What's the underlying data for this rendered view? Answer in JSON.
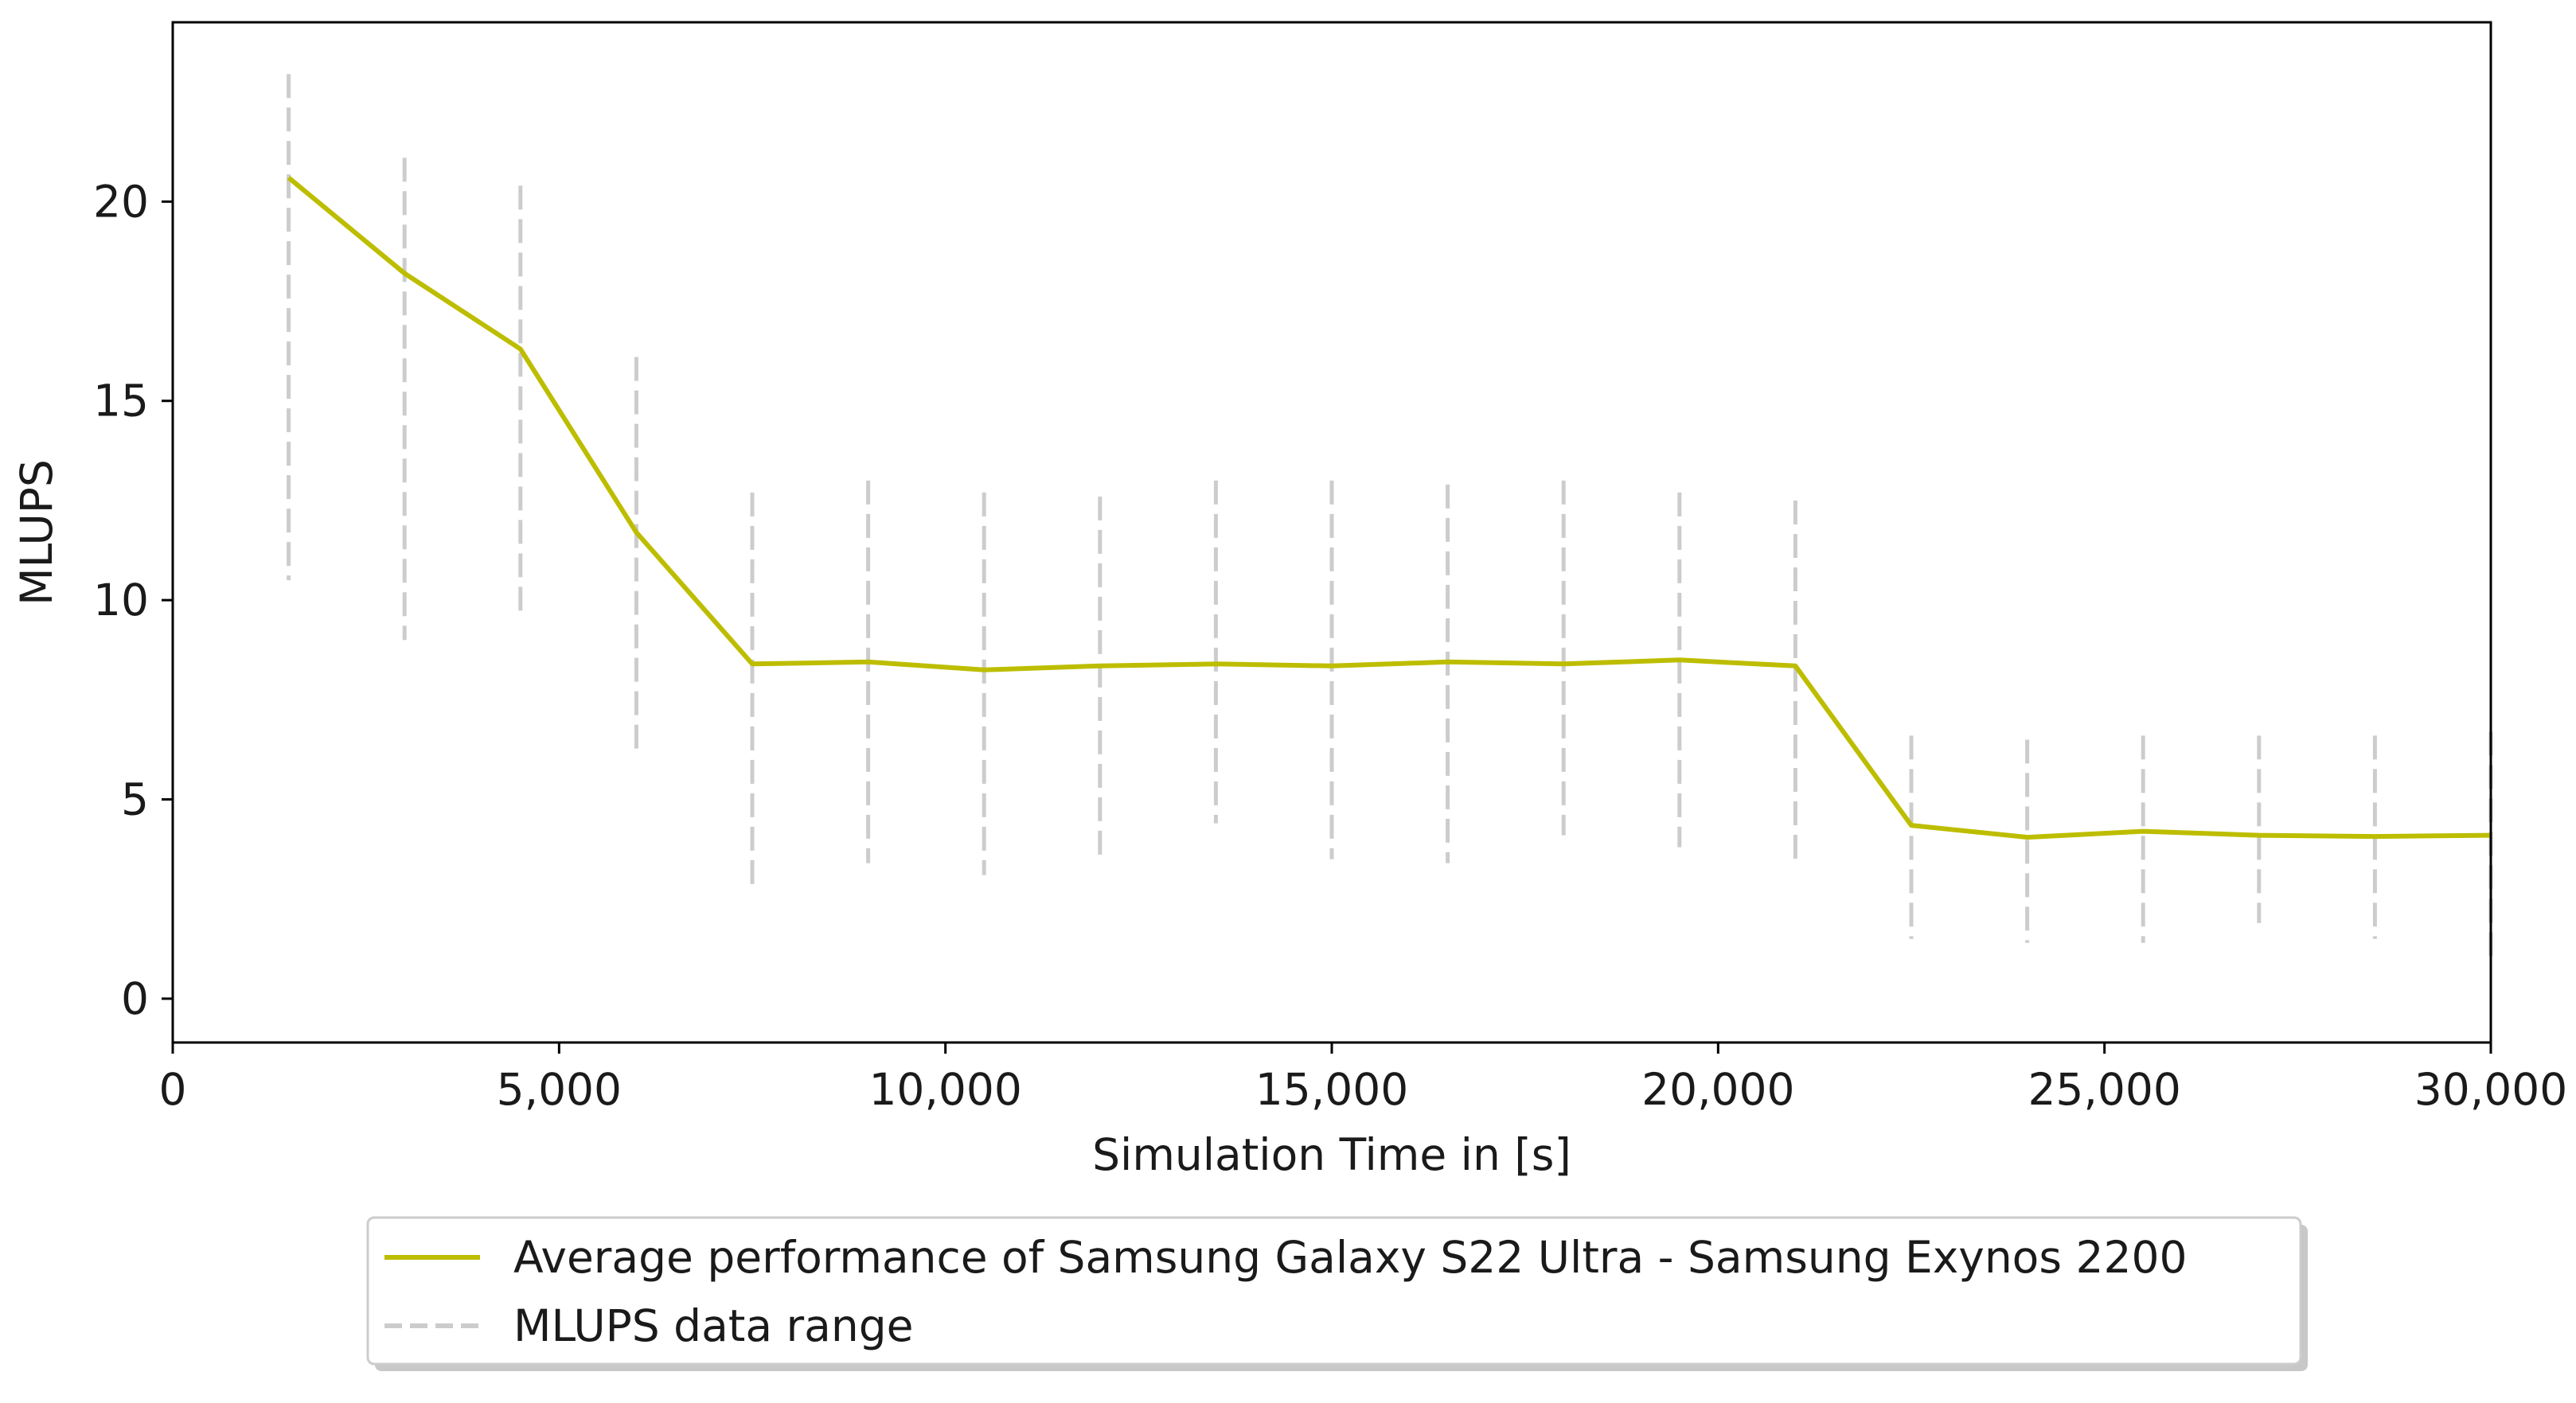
{
  "chart_data": {
    "type": "line",
    "title": "",
    "xlabel": "Simulation Time in [s]",
    "ylabel": "MLUPS",
    "xlim": [
      0,
      30000
    ],
    "ylim": [
      -1.1,
      24.5
    ],
    "grid": false,
    "x_ticks": [
      0,
      5000,
      10000,
      15000,
      20000,
      25000,
      30000
    ],
    "x_tick_labels": [
      "0",
      "5,000",
      "10,000",
      "15,000",
      "20,000",
      "25,000",
      "30,000"
    ],
    "y_ticks": [
      0,
      5,
      10,
      15,
      20
    ],
    "y_tick_labels": [
      "0",
      "5",
      "10",
      "15",
      "20"
    ],
    "legend_position": "bottom-center",
    "series": [
      {
        "name": "Average performance of Samsung Galaxy S22 Ultra - Samsung Exynos 2200",
        "style": "solid",
        "color": "#bdbd00",
        "x": [
          1500,
          3000,
          4500,
          6000,
          7500,
          9000,
          10500,
          12000,
          13500,
          15000,
          16500,
          18000,
          19500,
          21000,
          22500,
          24000,
          25500,
          27000,
          28500,
          30000
        ],
        "values": [
          20.6,
          18.2,
          16.3,
          11.7,
          8.4,
          8.45,
          8.25,
          8.35,
          8.4,
          8.35,
          8.45,
          8.4,
          8.5,
          8.35,
          4.35,
          4.05,
          4.2,
          4.1,
          4.07,
          4.1
        ]
      }
    ],
    "ranges": {
      "name": "MLUPS data range",
      "style": "dashed",
      "color": "#cccccc",
      "x": [
        1500,
        3000,
        4500,
        6000,
        7500,
        9000,
        10500,
        12000,
        13500,
        15000,
        16500,
        18000,
        19500,
        21000,
        22500,
        24000,
        25500,
        27000,
        28500,
        30000
      ],
      "low": [
        10.5,
        9.0,
        9.6,
        6.1,
        2.8,
        3.4,
        3.1,
        3.6,
        4.4,
        3.5,
        3.4,
        4.1,
        3.8,
        3.5,
        1.5,
        1.4,
        1.4,
        1.9,
        1.5,
        0.9
      ],
      "high": [
        23.2,
        21.1,
        20.4,
        16.1,
        12.7,
        13.0,
        12.7,
        12.6,
        13.0,
        13.0,
        12.9,
        13.0,
        12.7,
        12.5,
        6.6,
        6.5,
        6.6,
        6.6,
        6.6,
        6.7
      ]
    }
  }
}
